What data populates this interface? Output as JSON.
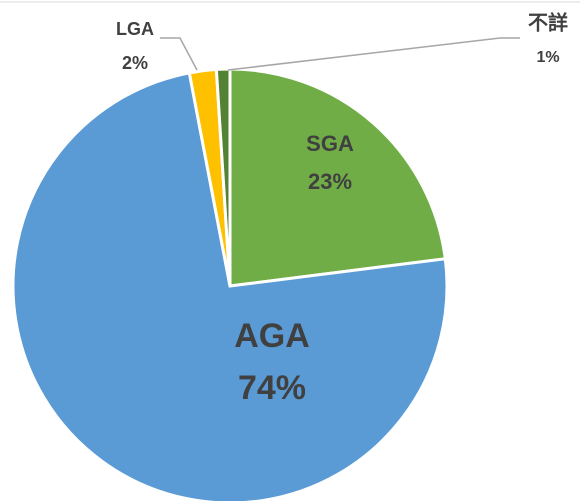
{
  "chart_data": {
    "type": "pie",
    "categories": [
      "SGA",
      "AGA",
      "LGA",
      "不詳"
    ],
    "values": [
      23,
      74,
      2,
      1
    ],
    "value_labels": [
      "23%",
      "74%",
      "2%",
      "1%"
    ],
    "colors": [
      "#70ad47",
      "#5b9bd5",
      "#ffc000",
      "#548235"
    ]
  }
}
